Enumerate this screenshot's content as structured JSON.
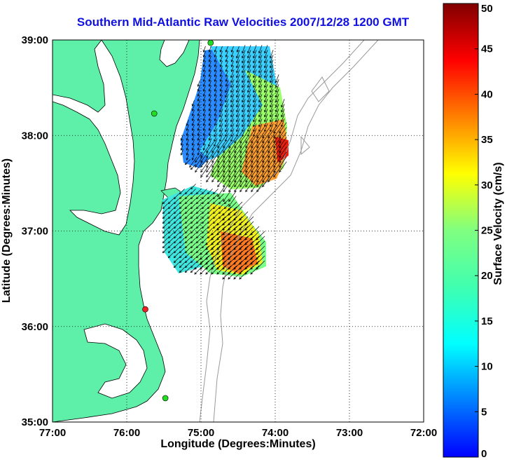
{
  "title": "Southern Mid-Atlantic Raw Velocities 2007/12/28 1200 GMT",
  "x_axis": {
    "label": "Longitude (Degrees:Minutes)",
    "ticks": [
      "77:00",
      "76:00",
      "75:00",
      "74:00",
      "73:00",
      "72:00"
    ],
    "range_deg_west": [
      77,
      72
    ]
  },
  "y_axis": {
    "label": "Latitude (Degrees:Minutes)",
    "ticks": [
      "39:00",
      "38:00",
      "37:00",
      "36:00",
      "35:00"
    ],
    "range_deg_north": [
      35,
      39
    ]
  },
  "colorbar": {
    "label": "Surface Velocity (cm/s)",
    "ticks": [
      "0",
      "5",
      "10",
      "15",
      "20",
      "25",
      "30",
      "35",
      "40",
      "45",
      "50"
    ],
    "range": [
      0,
      50
    ],
    "colormap": "jet"
  },
  "colors": {
    "land": "#5ef0a8",
    "water": "#ffffff",
    "title": "#1010e0",
    "bathymetry": "#999999",
    "station_green": "#22dd22",
    "station_red": "#ee2222"
  },
  "stations": [
    {
      "lon": 74.87,
      "lat": 38.97,
      "status": "green"
    },
    {
      "lon": 75.63,
      "lat": 38.23,
      "status": "green"
    },
    {
      "lon": 75.75,
      "lat": 36.18,
      "status": "red"
    },
    {
      "lon": 75.48,
      "lat": 35.25,
      "status": "green"
    }
  ],
  "chart_data": {
    "type": "heatmap",
    "title": "Southern Mid-Atlantic Raw Velocities 2007/12/28 1200 GMT",
    "xlabel": "Longitude (Degrees:Minutes)",
    "ylabel": "Latitude (Degrees:Minutes)",
    "xlim": [
      77,
      72
    ],
    "ylim": [
      35,
      39
    ],
    "grid": true,
    "value_label": "Surface Velocity (cm/s)",
    "value_range": [
      0,
      50
    ],
    "regions": [
      {
        "lon": [
          75.05,
          74.95
        ],
        "lat": [
          38.9,
          38.0
        ],
        "velocity": 8,
        "direction_deg": 200
      },
      {
        "lon": [
          74.6,
          74.2
        ],
        "lat": [
          38.5,
          38.1
        ],
        "velocity": 18,
        "direction_deg": 200
      },
      {
        "lon": [
          74.4,
          74.0
        ],
        "lat": [
          38.0,
          37.5
        ],
        "velocity": 35,
        "direction_deg": 215
      },
      {
        "lon": [
          75.4,
          75.0
        ],
        "lat": [
          37.3,
          36.7
        ],
        "velocity": 12,
        "direction_deg": 225
      },
      {
        "lon": [
          74.8,
          74.4
        ],
        "lat": [
          37.0,
          36.5
        ],
        "velocity": 32,
        "direction_deg": 225
      }
    ]
  }
}
